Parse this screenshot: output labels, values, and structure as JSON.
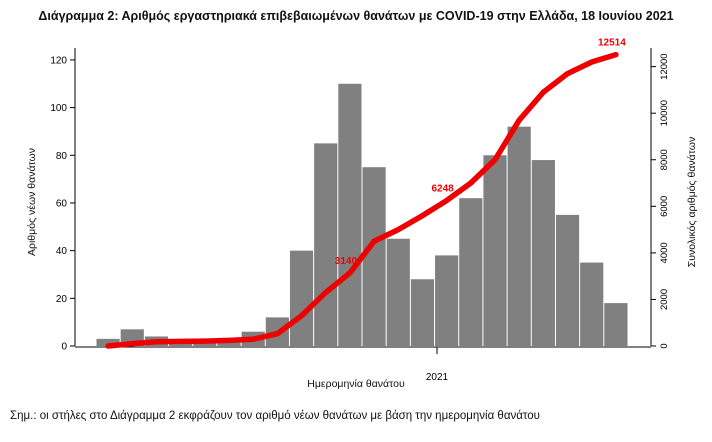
{
  "chart_data": {
    "type": "bar",
    "title": "Διάγραμμα 2: Αριθμός εργαστηριακά επιβεβαιωμένων θανάτων με COVID-19 στην Ελλάδα, 18 Ιουνίου 2021",
    "xlabel": "Ημερομηνία θανάτου",
    "ylabel": "Αριθμός νέων θανάτων",
    "y2label": "Συνολικός αριθμός θανάτων",
    "x_tick_labels": [
      "2021"
    ],
    "ylim": [
      0,
      125
    ],
    "y_ticks": [
      0,
      20,
      40,
      60,
      80,
      100,
      120
    ],
    "y2lim": [
      0,
      12800
    ],
    "y2_ticks": [
      0,
      2000,
      4000,
      6000,
      8000,
      10000,
      12000
    ],
    "x": [
      "2020-03",
      "2020-04",
      "2020-05",
      "2020-06",
      "2020-07",
      "2020-08",
      "2020-09",
      "2020-10",
      "2020-11-01",
      "2020-11-15",
      "2020-12-01",
      "2020-12-15",
      "2021-01",
      "2021-02-01",
      "2021-02-15",
      "2021-03-01",
      "2021-03-15",
      "2021-04-01",
      "2021-04-15",
      "2021-05-01",
      "2021-05-15",
      "2021-06"
    ],
    "series": [
      {
        "name": "",
        "type": "bar",
        "axis": "left",
        "color": "#808080",
        "values": [
          3,
          7,
          4,
          2,
          2,
          3,
          6,
          12,
          40,
          85,
          110,
          75,
          45,
          28,
          38,
          62,
          80,
          92,
          78,
          55,
          35,
          18
        ]
      },
      {
        "name": "",
        "type": "line",
        "axis": "right",
        "color": "#ee0000",
        "values": [
          0,
          100,
          180,
          200,
          210,
          240,
          290,
          530,
          1300,
          2300,
          3140,
          4500,
          5000,
          5600,
          6248,
          7000,
          8000,
          9700,
          10900,
          11700,
          12200,
          12514
        ]
      }
    ],
    "annotations": [
      {
        "label": "3140",
        "series": 1,
        "index": 10
      },
      {
        "label": "6248",
        "series": 1,
        "index": 14
      },
      {
        "label": "12514",
        "series": 1,
        "index": 21
      }
    ]
  },
  "footnote": "Σημ.: οι στήλες στο Διάγραμμα 2 εκφράζουν τον αριθμό νέων θανάτων με βάση την ημερομηνία θανάτου"
}
